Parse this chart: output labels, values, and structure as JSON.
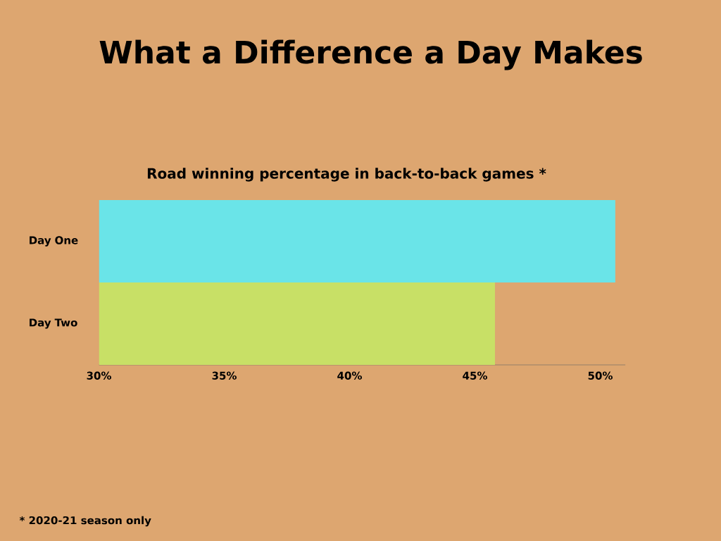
{
  "chart_data": {
    "type": "bar",
    "orientation": "horizontal",
    "title": "What a Difference a Day Makes",
    "subtitle": "Road winning percentage in back-to-back games *",
    "categories": [
      "Day One",
      "Day Two"
    ],
    "values": [
      50.6,
      45.8
    ],
    "colors": [
      "#6ae4e8",
      "#c8e066"
    ],
    "xlim": [
      30,
      51
    ],
    "xticks": [
      {
        "value": 30,
        "label": "30%"
      },
      {
        "value": 35,
        "label": "35%"
      },
      {
        "value": 40,
        "label": "40%"
      },
      {
        "value": 45,
        "label": "45%"
      },
      {
        "value": 50,
        "label": "50%"
      }
    ],
    "annotations": [
      "* 2020-21 season only"
    ]
  }
}
